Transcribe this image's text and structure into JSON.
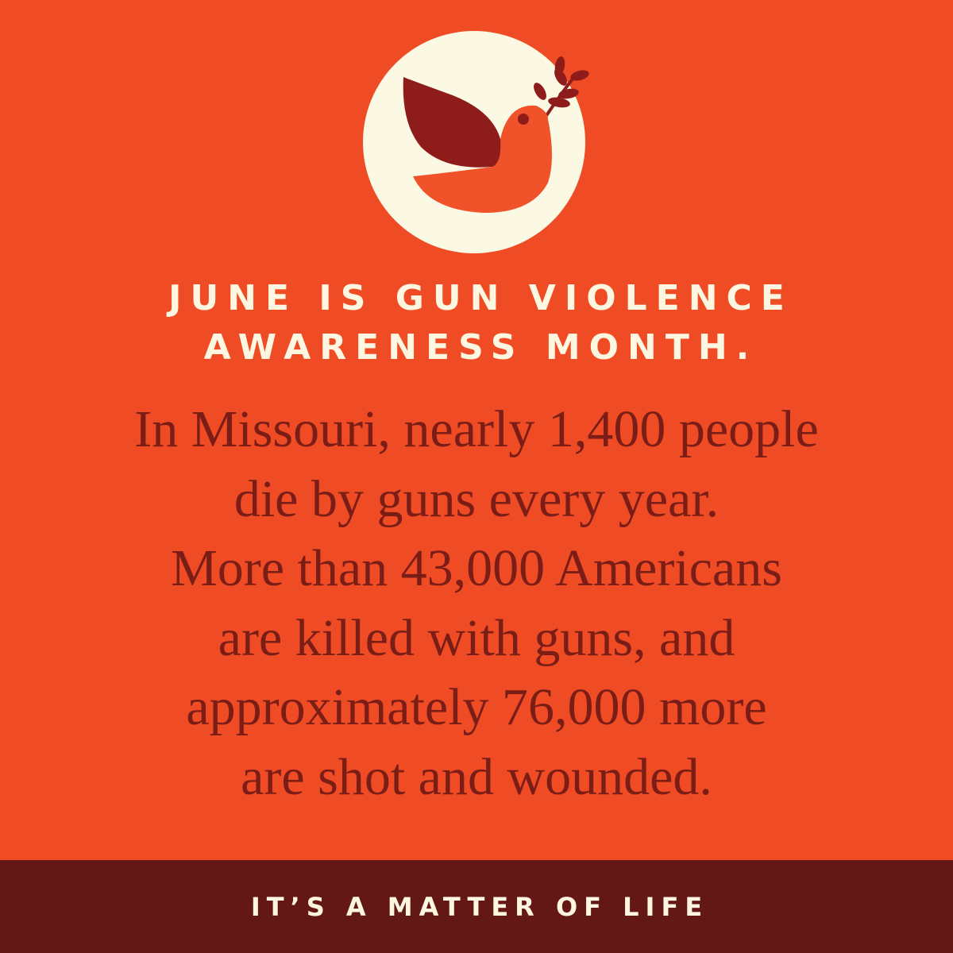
{
  "logo": {
    "icon": "dove-with-olive-branch-icon",
    "circle_color": "#fbf9e4",
    "wing_color": "#8e1c1a",
    "body_color": "#f0522a"
  },
  "headline": {
    "lines": [
      "JUNE IS GUN VIOLENCE",
      "AWARENESS MONTH."
    ]
  },
  "body": {
    "lines": [
      "In Missouri, nearly 1,400 people",
      "die by guns every year.",
      "More than 43,000 Americans",
      "are killed with guns, and",
      "approximately 76,000 more",
      "are shot and wounded."
    ]
  },
  "footer": {
    "text": "IT’S A MATTER OF LIFE"
  },
  "colors": {
    "background": "#ef4b24",
    "footer_bg": "#641816",
    "headline": "#fdf6e0",
    "body_text": "#7a1d17"
  }
}
